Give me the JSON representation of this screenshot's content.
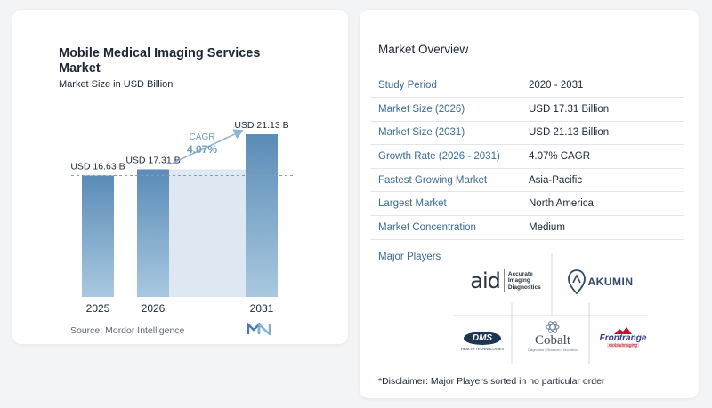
{
  "chart": {
    "title": "Mobile Medical Imaging Services Market",
    "subtitle": "Market Size in USD Billion",
    "source": "Source:  Mordor Intelligence",
    "cagr_label": "CAGR",
    "cagr_value": "4.07%"
  },
  "chart_data": {
    "type": "bar",
    "categories": [
      "2025",
      "2026",
      "2031"
    ],
    "values": [
      16.63,
      17.31,
      21.13
    ],
    "data_labels": [
      "USD 16.63 B",
      "USD 17.31 B",
      "USD 21.13 B"
    ],
    "title": "Mobile Medical Imaging Services Market",
    "subtitle": "Market Size in USD Billion",
    "xlabel": "",
    "ylabel": "",
    "grid": false,
    "reference_line": 16.63,
    "annotation": "CAGR 4.07%"
  },
  "overview": {
    "title": "Market Overview",
    "rows": [
      {
        "key": "Study Period",
        "value": "2020 - 2031"
      },
      {
        "key": "Market Size (2026)",
        "value": "USD 17.31 Billion"
      },
      {
        "key": "Market Size (2031)",
        "value": "USD 21.13 Billion"
      },
      {
        "key": "Growth Rate (2026 - 2031)",
        "value": "4.07% CAGR"
      },
      {
        "key": "Fastest Growing Market",
        "value": "Asia-Pacific"
      },
      {
        "key": "Largest Market",
        "value": "North America"
      },
      {
        "key": "Market Concentration",
        "value": "Medium"
      }
    ]
  },
  "players": {
    "title": "Major Players",
    "aid_mark": "aid",
    "aid_text": [
      "Accurate",
      "Imaging",
      "Diagnostics"
    ],
    "akumin": "AKUMIN",
    "dms": "DMS",
    "dms_sub": "HEALTH TECHNOLOGIES",
    "cobalt": "Cobalt",
    "cobalt_sub": "Diagnostics • Research • Innovation",
    "frontrange": "Frontrange",
    "frontrange_sub": "mobileimaging"
  },
  "disclaimer": "*Disclaimer: Major Players sorted in no particular order",
  "colors": {
    "bar": "#5b8db8",
    "bar_light": "#a8c6df",
    "band": "#dde8f2",
    "accent": "#3a6c94"
  }
}
